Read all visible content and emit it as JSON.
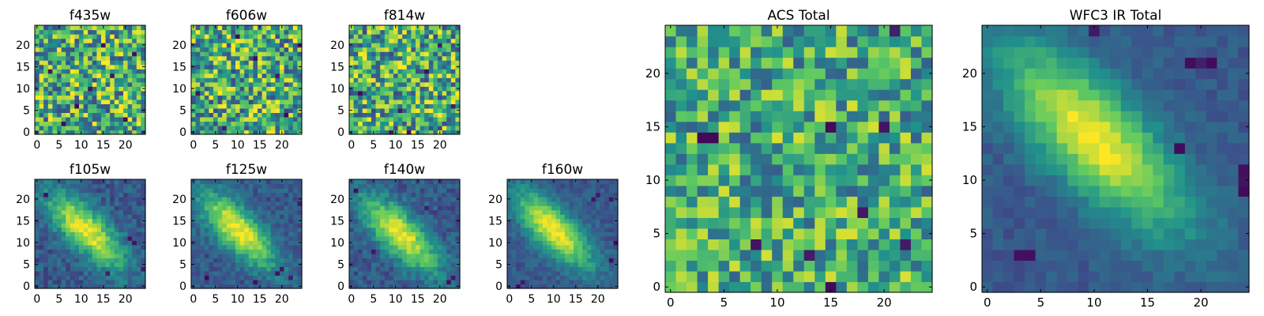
{
  "colormap": [
    "#440154",
    "#3b528b",
    "#21918c",
    "#5ec962",
    "#fde725"
  ],
  "chart_data": [
    {
      "type": "heatmap",
      "title": "f435w",
      "x_ticks": [
        "0",
        "5",
        "10",
        "15",
        "20"
      ],
      "y_ticks": [
        "0",
        "5",
        "10",
        "15",
        "20"
      ],
      "grid_size": 25,
      "xlim": [
        -0.5,
        24.5
      ],
      "ylim": [
        -0.5,
        24.5
      ],
      "pattern": "noise",
      "noise": 0.42,
      "lows": [
        [
          3,
          14
        ],
        [
          9,
          6
        ],
        [
          15,
          20
        ],
        [
          20,
          3
        ],
        [
          6,
          2
        ],
        [
          12,
          10
        ],
        [
          17,
          13
        ],
        [
          22,
          18
        ]
      ]
    },
    {
      "type": "heatmap",
      "title": "f606w",
      "x_ticks": [
        "0",
        "5",
        "10",
        "15",
        "20"
      ],
      "y_ticks": [
        "0",
        "5",
        "10",
        "15",
        "20"
      ],
      "grid_size": 25,
      "xlim": [
        -0.5,
        24.5
      ],
      "ylim": [
        -0.5,
        24.5
      ],
      "pattern": "noise",
      "noise": 0.42,
      "lows": [
        [
          1,
          9
        ],
        [
          19,
          13
        ],
        [
          21,
          4
        ],
        [
          7,
          1
        ],
        [
          14,
          17
        ],
        [
          24,
          20
        ],
        [
          10,
          22
        ]
      ]
    },
    {
      "type": "heatmap",
      "title": "f814w",
      "x_ticks": [
        "0",
        "5",
        "10",
        "15",
        "20"
      ],
      "y_ticks": [
        "0",
        "5",
        "10",
        "15",
        "20"
      ],
      "grid_size": 25,
      "xlim": [
        -0.5,
        24.5
      ],
      "ylim": [
        -0.5,
        24.5
      ],
      "pattern": "noise",
      "noise": 0.42,
      "lows": [
        [
          2,
          9
        ],
        [
          9,
          0
        ],
        [
          13,
          0
        ],
        [
          17,
          14
        ],
        [
          20,
          20
        ],
        [
          23,
          6
        ],
        [
          11,
          5
        ]
      ]
    },
    {
      "type": "heatmap",
      "title": "f105w",
      "x_ticks": [
        "0",
        "5",
        "10",
        "15",
        "20"
      ],
      "y_ticks": [
        "0",
        "5",
        "10",
        "15",
        "20"
      ],
      "grid_size": 25,
      "xlim": [
        -0.5,
        24.5
      ],
      "ylim": [
        -0.5,
        24.5
      ],
      "pattern": "galaxy",
      "noise": 0.22,
      "center": [
        11,
        13
      ],
      "lows": [
        [
          21,
          11
        ],
        [
          22,
          10
        ],
        [
          16,
          3
        ],
        [
          2,
          21
        ],
        [
          24,
          4
        ]
      ]
    },
    {
      "type": "heatmap",
      "title": "f125w",
      "x_ticks": [
        "0",
        "5",
        "10",
        "15",
        "20"
      ],
      "y_ticks": [
        "0",
        "5",
        "10",
        "15",
        "20"
      ],
      "grid_size": 25,
      "xlim": [
        -0.5,
        24.5
      ],
      "ylim": [
        -0.5,
        24.5
      ],
      "pattern": "galaxy",
      "noise": 0.2,
      "center": [
        10,
        13
      ],
      "lows": [
        [
          19,
          3
        ],
        [
          20,
          4
        ],
        [
          22,
          2
        ],
        [
          3,
          2
        ],
        [
          24,
          19
        ],
        [
          14,
          1
        ]
      ]
    },
    {
      "type": "heatmap",
      "title": "f140w",
      "x_ticks": [
        "0",
        "5",
        "10",
        "15",
        "20"
      ],
      "y_ticks": [
        "0",
        "5",
        "10",
        "15",
        "20"
      ],
      "grid_size": 25,
      "xlim": [
        -0.5,
        24.5
      ],
      "ylim": [
        -0.5,
        24.5
      ],
      "pattern": "galaxy",
      "noise": 0.22,
      "center": [
        11,
        12
      ],
      "lows": [
        [
          22,
          1
        ],
        [
          23,
          2
        ],
        [
          5,
          8
        ],
        [
          1,
          22
        ],
        [
          17,
          18
        ]
      ]
    },
    {
      "type": "heatmap",
      "title": "f160w",
      "x_ticks": [
        "0",
        "5",
        "10",
        "15",
        "20"
      ],
      "y_ticks": [
        "0",
        "5",
        "10",
        "15",
        "20"
      ],
      "grid_size": 25,
      "xlim": [
        -0.5,
        24.5
      ],
      "ylim": [
        -0.5,
        24.5
      ],
      "pattern": "galaxy",
      "noise": 0.16,
      "center": [
        10,
        13
      ],
      "lows": [
        [
          19,
          20
        ],
        [
          20,
          21
        ],
        [
          23,
          20
        ],
        [
          24,
          10
        ],
        [
          2,
          0
        ],
        [
          3,
          1
        ],
        [
          23,
          6
        ]
      ]
    },
    {
      "type": "heatmap",
      "title": "ACS Total",
      "x_ticks": [
        "0",
        "5",
        "10",
        "15",
        "20"
      ],
      "y_ticks": [
        "0",
        "5",
        "10",
        "15",
        "20"
      ],
      "grid_size": 25,
      "xlim": [
        -0.5,
        24.5
      ],
      "ylim": [
        -0.5,
        24.5
      ],
      "pattern": "noise",
      "noise": 0.34,
      "lows": [
        [
          3,
          14
        ],
        [
          4,
          14
        ],
        [
          21,
          24
        ],
        [
          15,
          15
        ],
        [
          20,
          15
        ],
        [
          18,
          7
        ],
        [
          8,
          4
        ],
        [
          13,
          3
        ],
        [
          22,
          4
        ],
        [
          15,
          0
        ]
      ]
    },
    {
      "type": "heatmap",
      "title": "WFC3 IR Total",
      "x_ticks": [
        "0",
        "5",
        "10",
        "15",
        "20"
      ],
      "y_ticks": [
        "0",
        "5",
        "10",
        "15",
        "20"
      ],
      "grid_size": 25,
      "xlim": [
        -0.5,
        24.5
      ],
      "ylim": [
        -0.5,
        24.5
      ],
      "pattern": "galaxy",
      "noise": 0.12,
      "center": [
        10,
        14
      ],
      "lows": [
        [
          10,
          24
        ],
        [
          19,
          21
        ],
        [
          20,
          21
        ],
        [
          21,
          21
        ],
        [
          24,
          9
        ],
        [
          24,
          10
        ],
        [
          24,
          11
        ],
        [
          3,
          3
        ],
        [
          4,
          3
        ],
        [
          18,
          13
        ]
      ]
    }
  ]
}
